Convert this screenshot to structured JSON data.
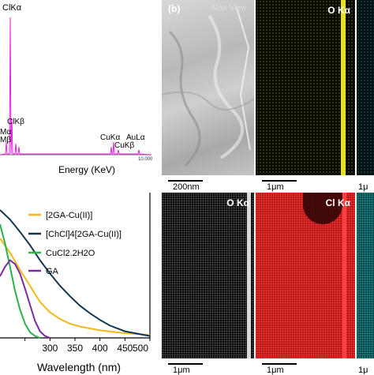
{
  "panel_b_label": "(b)",
  "eds_spectrum": {
    "peaks": [
      {
        "label": "ClKα"
      },
      {
        "label": "ClKβ"
      },
      {
        "label": "Mα"
      },
      {
        "label": "Mβ"
      },
      {
        "label": "CuKα"
      },
      {
        "label": "CuKβ"
      },
      {
        "label": "AuLα"
      }
    ],
    "x_end_tick": "10.000",
    "xlabel": "Energy (KeV)",
    "line_color": "#e81de0"
  },
  "maps_top": [
    {
      "label": "Max View",
      "scale": "200nm"
    },
    {
      "label": "O Kα",
      "scale": "1μm"
    },
    {
      "label": "",
      "scale": "1μ"
    }
  ],
  "maps_bottom": [
    {
      "label": "O Kα",
      "scale": "1μm"
    },
    {
      "label": "Cl Kα",
      "scale": "1μm"
    },
    {
      "label": "",
      "scale": "1μ"
    }
  ],
  "chart_data": {
    "type": "line",
    "xlabel": "Wavelength (nm)",
    "ylabel": "",
    "xlim": [
      200,
      500
    ],
    "x_ticks": [
      "",
      "300",
      "350",
      "400",
      "450",
      "500"
    ],
    "series": [
      {
        "name": "[2GA-Cu(II)]",
        "color": "#f2b81c",
        "x": [
          200,
          220,
          240,
          260,
          280,
          300,
          320,
          340,
          360,
          380,
          400,
          450,
          500
        ],
        "y": [
          1.05,
          0.9,
          0.72,
          0.55,
          0.38,
          0.27,
          0.2,
          0.15,
          0.12,
          0.1,
          0.08,
          0.05,
          0.03
        ]
      },
      {
        "name": "[ChCl]4[2GA-Cu(II)]",
        "color": "#13364e",
        "x": [
          200,
          220,
          240,
          260,
          280,
          300,
          320,
          340,
          360,
          380,
          400,
          420,
          450,
          500
        ],
        "y": [
          1.35,
          1.25,
          1.12,
          0.98,
          0.82,
          0.68,
          0.55,
          0.44,
          0.34,
          0.26,
          0.19,
          0.13,
          0.07,
          0.02
        ]
      },
      {
        "name": "CuCl2.2H2O",
        "color": "#2bb24c",
        "x": [
          200,
          210,
          220,
          230,
          240,
          250,
          260,
          270,
          280
        ],
        "y": [
          1.2,
          1.0,
          0.75,
          0.5,
          0.3,
          0.15,
          0.06,
          0.02,
          0.0
        ]
      },
      {
        "name": "GA",
        "color": "#7a2c9c",
        "x": [
          200,
          210,
          220,
          230,
          240,
          250,
          260,
          270,
          280,
          290,
          300
        ],
        "y": [
          0.65,
          0.75,
          0.82,
          0.78,
          0.68,
          0.52,
          0.35,
          0.18,
          0.07,
          0.02,
          0.0
        ]
      }
    ]
  }
}
